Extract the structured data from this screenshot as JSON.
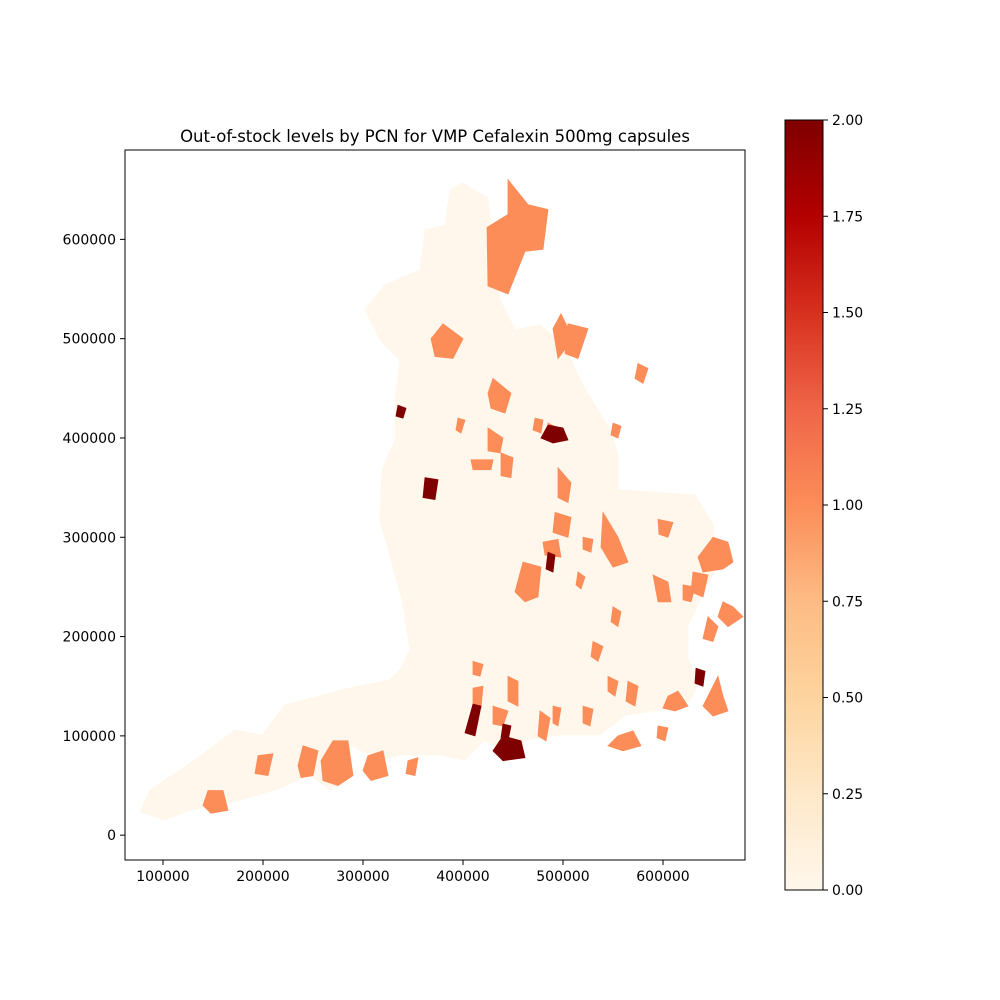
{
  "chart_data": {
    "type": "choropleth-map",
    "title": "Out-of-stock levels by PCN for VMP Cefalexin 500mg capsules",
    "xlabel": "",
    "ylabel": "",
    "xlim": [
      62000,
      682000
    ],
    "ylim": [
      -25000,
      690000
    ],
    "x_ticks": [
      {
        "value": 100000,
        "label": "100000"
      },
      {
        "value": 200000,
        "label": "200000"
      },
      {
        "value": 300000,
        "label": "300000"
      },
      {
        "value": 400000,
        "label": "400000"
      },
      {
        "value": 500000,
        "label": "500000"
      },
      {
        "value": 600000,
        "label": "600000"
      }
    ],
    "y_ticks": [
      {
        "value": 0,
        "label": "0"
      },
      {
        "value": 100000,
        "label": "100000"
      },
      {
        "value": 200000,
        "label": "200000"
      },
      {
        "value": 300000,
        "label": "300000"
      },
      {
        "value": 400000,
        "label": "400000"
      },
      {
        "value": 500000,
        "label": "500000"
      },
      {
        "value": 600000,
        "label": "600000"
      }
    ],
    "colorbar": {
      "colormap": "OrRd",
      "range": [
        0,
        2
      ],
      "placement": "right",
      "stops": [
        {
          "v": 0.0,
          "color": "#fff7ec"
        },
        {
          "v": 0.25,
          "color": "#fee8c8"
        },
        {
          "v": 0.5,
          "color": "#fdd49e"
        },
        {
          "v": 0.75,
          "color": "#fdbb84"
        },
        {
          "v": 1.0,
          "color": "#fc8d59"
        },
        {
          "v": 1.25,
          "color": "#ef6548"
        },
        {
          "v": 1.5,
          "color": "#d7301f"
        },
        {
          "v": 1.75,
          "color": "#b30000"
        },
        {
          "v": 2.0,
          "color": "#7f0000"
        }
      ],
      "ticks": [
        {
          "value": 0.0,
          "label": "0.00"
        },
        {
          "value": 0.25,
          "label": "0.25"
        },
        {
          "value": 0.5,
          "label": "0.50"
        },
        {
          "value": 0.75,
          "label": "0.75"
        },
        {
          "value": 1.0,
          "label": "1.00"
        },
        {
          "value": 1.25,
          "label": "1.25"
        },
        {
          "value": 1.5,
          "label": "1.50"
        },
        {
          "value": 1.75,
          "label": "1.75"
        },
        {
          "value": 2.0,
          "label": "2.00"
        }
      ]
    },
    "regions_level_1": [
      [
        [
          445000,
          660000
        ],
        [
          465000,
          635000
        ],
        [
          485000,
          630000
        ],
        [
          480000,
          590000
        ],
        [
          462000,
          588000
        ],
        [
          445000,
          545000
        ],
        [
          425000,
          553000
        ],
        [
          424000,
          612000
        ],
        [
          445000,
          625000
        ]
      ],
      [
        [
          380000,
          515000
        ],
        [
          400000,
          500000
        ],
        [
          390000,
          480000
        ],
        [
          372000,
          482000
        ],
        [
          368000,
          500000
        ]
      ],
      [
        [
          498000,
          525000
        ],
        [
          510000,
          500000
        ],
        [
          495000,
          480000
        ],
        [
          490000,
          510000
        ]
      ],
      [
        [
          505000,
          515000
        ],
        [
          525000,
          510000
        ],
        [
          515000,
          480000
        ],
        [
          502000,
          485000
        ]
      ],
      [
        [
          430000,
          460000
        ],
        [
          448000,
          445000
        ],
        [
          442000,
          425000
        ],
        [
          428000,
          430000
        ],
        [
          425000,
          445000
        ]
      ],
      [
        [
          575000,
          475000
        ],
        [
          585000,
          470000
        ],
        [
          580000,
          455000
        ],
        [
          572000,
          460000
        ]
      ],
      [
        [
          438000,
          385000
        ],
        [
          450000,
          380000
        ],
        [
          448000,
          360000
        ],
        [
          438000,
          362000
        ]
      ],
      [
        [
          408000,
          378000
        ],
        [
          430000,
          378000
        ],
        [
          428000,
          368000
        ],
        [
          410000,
          368000
        ]
      ],
      [
        [
          495000,
          370000
        ],
        [
          508000,
          355000
        ],
        [
          505000,
          335000
        ],
        [
          495000,
          340000
        ]
      ],
      [
        [
          540000,
          325000
        ],
        [
          555000,
          300000
        ],
        [
          565000,
          275000
        ],
        [
          550000,
          270000
        ],
        [
          538000,
          290000
        ]
      ],
      [
        [
          595000,
          318000
        ],
        [
          610000,
          315000
        ],
        [
          605000,
          300000
        ],
        [
          596000,
          303000
        ]
      ],
      [
        [
          492000,
          325000
        ],
        [
          508000,
          320000
        ],
        [
          505000,
          300000
        ],
        [
          490000,
          305000
        ]
      ],
      [
        [
          520000,
          300000
        ],
        [
          530000,
          298000
        ],
        [
          528000,
          285000
        ],
        [
          520000,
          288000
        ]
      ],
      [
        [
          480000,
          295000
        ],
        [
          495000,
          298000
        ],
        [
          498000,
          280000
        ],
        [
          482000,
          282000
        ]
      ],
      [
        [
          460000,
          275000
        ],
        [
          478000,
          270000
        ],
        [
          475000,
          240000
        ],
        [
          462000,
          235000
        ],
        [
          452000,
          245000
        ]
      ],
      [
        [
          515000,
          265000
        ],
        [
          522000,
          260000
        ],
        [
          518000,
          248000
        ],
        [
          513000,
          252000
        ]
      ],
      [
        [
          590000,
          262000
        ],
        [
          605000,
          255000
        ],
        [
          608000,
          235000
        ],
        [
          595000,
          235000
        ]
      ],
      [
        [
          620000,
          252000
        ],
        [
          632000,
          250000
        ],
        [
          628000,
          235000
        ],
        [
          620000,
          237000
        ]
      ],
      [
        [
          650000,
          300000
        ],
        [
          665000,
          295000
        ],
        [
          670000,
          275000
        ],
        [
          660000,
          268000
        ],
        [
          640000,
          265000
        ],
        [
          635000,
          280000
        ]
      ],
      [
        [
          630000,
          265000
        ],
        [
          645000,
          262000
        ],
        [
          640000,
          240000
        ],
        [
          628000,
          245000
        ]
      ],
      [
        [
          660000,
          235000
        ],
        [
          670000,
          230000
        ],
        [
          680000,
          220000
        ],
        [
          665000,
          210000
        ],
        [
          655000,
          220000
        ]
      ],
      [
        [
          645000,
          220000
        ],
        [
          655000,
          210000
        ],
        [
          650000,
          195000
        ],
        [
          640000,
          198000
        ]
      ],
      [
        [
          550000,
          230000
        ],
        [
          558000,
          225000
        ],
        [
          555000,
          210000
        ],
        [
          548000,
          215000
        ]
      ],
      [
        [
          530000,
          195000
        ],
        [
          540000,
          190000
        ],
        [
          535000,
          175000
        ],
        [
          528000,
          180000
        ]
      ],
      [
        [
          545000,
          160000
        ],
        [
          555000,
          155000
        ],
        [
          552000,
          140000
        ],
        [
          545000,
          145000
        ]
      ],
      [
        [
          565000,
          155000
        ],
        [
          575000,
          150000
        ],
        [
          572000,
          130000
        ],
        [
          563000,
          135000
        ]
      ],
      [
        [
          605000,
          140000
        ],
        [
          615000,
          145000
        ],
        [
          625000,
          130000
        ],
        [
          612000,
          125000
        ],
        [
          600000,
          128000
        ]
      ],
      [
        [
          655000,
          160000
        ],
        [
          660000,
          140000
        ],
        [
          665000,
          125000
        ],
        [
          650000,
          120000
        ],
        [
          640000,
          130000
        ]
      ],
      [
        [
          555000,
          100000
        ],
        [
          570000,
          105000
        ],
        [
          578000,
          90000
        ],
        [
          560000,
          85000
        ],
        [
          545000,
          90000
        ]
      ],
      [
        [
          595000,
          110000
        ],
        [
          605000,
          108000
        ],
        [
          602000,
          95000
        ],
        [
          594000,
          98000
        ]
      ],
      [
        [
          410000,
          175000
        ],
        [
          420000,
          172000
        ],
        [
          417000,
          160000
        ],
        [
          410000,
          162000
        ]
      ],
      [
        [
          410000,
          148000
        ],
        [
          420000,
          150000
        ],
        [
          418000,
          128000
        ],
        [
          410000,
          130000
        ]
      ],
      [
        [
          445000,
          160000
        ],
        [
          455000,
          155000
        ],
        [
          455000,
          130000
        ],
        [
          445000,
          135000
        ]
      ],
      [
        [
          430000,
          130000
        ],
        [
          445000,
          125000
        ],
        [
          440000,
          110000
        ],
        [
          430000,
          112000
        ]
      ],
      [
        [
          477000,
          125000
        ],
        [
          487000,
          118000
        ],
        [
          483000,
          95000
        ],
        [
          475000,
          100000
        ]
      ],
      [
        [
          490000,
          130000
        ],
        [
          498000,
          128000
        ],
        [
          495000,
          110000
        ],
        [
          490000,
          113000
        ]
      ],
      [
        [
          520000,
          130000
        ],
        [
          530000,
          127000
        ],
        [
          527000,
          110000
        ],
        [
          520000,
          113000
        ]
      ],
      [
        [
          270000,
          95000
        ],
        [
          285000,
          95000
        ],
        [
          290000,
          60000
        ],
        [
          275000,
          50000
        ],
        [
          260000,
          55000
        ],
        [
          258000,
          75000
        ]
      ],
      [
        [
          240000,
          90000
        ],
        [
          255000,
          85000
        ],
        [
          250000,
          60000
        ],
        [
          238000,
          58000
        ],
        [
          235000,
          70000
        ]
      ],
      [
        [
          305000,
          80000
        ],
        [
          320000,
          85000
        ],
        [
          325000,
          60000
        ],
        [
          308000,
          55000
        ],
        [
          300000,
          65000
        ]
      ],
      [
        [
          345000,
          75000
        ],
        [
          355000,
          78000
        ],
        [
          352000,
          60000
        ],
        [
          343000,
          62000
        ]
      ],
      [
        [
          195000,
          80000
        ],
        [
          210000,
          82000
        ],
        [
          205000,
          60000
        ],
        [
          192000,
          62000
        ]
      ],
      [
        [
          145000,
          45000
        ],
        [
          160000,
          45000
        ],
        [
          165000,
          25000
        ],
        [
          148000,
          22000
        ],
        [
          140000,
          30000
        ]
      ],
      [
        [
          425000,
          410000
        ],
        [
          440000,
          400000
        ],
        [
          437000,
          385000
        ],
        [
          425000,
          387000
        ]
      ],
      [
        [
          395000,
          420000
        ],
        [
          402000,
          418000
        ],
        [
          398000,
          405000
        ],
        [
          393000,
          408000
        ]
      ],
      [
        [
          472000,
          420000
        ],
        [
          480000,
          418000
        ],
        [
          478000,
          405000
        ],
        [
          470000,
          408000
        ]
      ],
      [
        [
          485000,
          415000
        ],
        [
          495000,
          410000
        ],
        [
          490000,
          395000
        ],
        [
          484000,
          400000
        ]
      ],
      [
        [
          550000,
          415000
        ],
        [
          558000,
          412000
        ],
        [
          555000,
          400000
        ],
        [
          548000,
          403000
        ]
      ]
    ],
    "regions_level_2": [
      [
        [
          335000,
          433000
        ],
        [
          343000,
          430000
        ],
        [
          340000,
          420000
        ],
        [
          333000,
          422000
        ]
      ],
      [
        [
          485000,
          413000
        ],
        [
          500000,
          410000
        ],
        [
          505000,
          398000
        ],
        [
          490000,
          395000
        ],
        [
          478000,
          400000
        ]
      ],
      [
        [
          362000,
          360000
        ],
        [
          375000,
          358000
        ],
        [
          372000,
          338000
        ],
        [
          360000,
          340000
        ]
      ],
      [
        [
          485000,
          285000
        ],
        [
          492000,
          282000
        ],
        [
          490000,
          265000
        ],
        [
          483000,
          268000
        ]
      ],
      [
        [
          440000,
          100000
        ],
        [
          458000,
          95000
        ],
        [
          462000,
          78000
        ],
        [
          440000,
          75000
        ],
        [
          430000,
          85000
        ]
      ],
      [
        [
          410000,
          132000
        ],
        [
          418000,
          130000
        ],
        [
          412000,
          100000
        ],
        [
          402000,
          103000
        ]
      ],
      [
        [
          440000,
          112000
        ],
        [
          448000,
          110000
        ],
        [
          445000,
          95000
        ],
        [
          438000,
          98000
        ]
      ],
      [
        [
          633000,
          168000
        ],
        [
          642000,
          165000
        ],
        [
          640000,
          150000
        ],
        [
          632000,
          153000
        ]
      ]
    ]
  }
}
